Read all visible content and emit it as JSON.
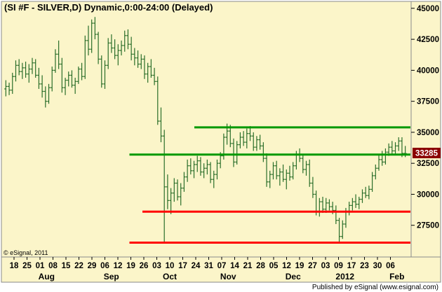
{
  "chart_data": {
    "type": "ohlc",
    "title": "(SI #F - SILVER,D) Dynamic,0:00-24:00 (Delayed)",
    "ylim": [
      25000,
      45500
    ],
    "y_ticks": [
      "45000",
      "42500",
      "40000",
      "37500",
      "35000",
      "32500",
      "30000",
      "27500"
    ],
    "x_ticks": [
      "18",
      "25",
      "01",
      "08",
      "15",
      "22",
      "29",
      "06",
      "12",
      "19",
      "26",
      "03",
      "10",
      "17",
      "24",
      "31",
      "07",
      "14",
      "21",
      "28",
      "05",
      "12",
      "19",
      "27",
      "03",
      "09",
      "17",
      "23",
      "30",
      "06"
    ],
    "months": [
      "Aug",
      "Sep",
      "Oct",
      "Nov",
      "Dec",
      "2012",
      "Feb"
    ],
    "last_price": "33285",
    "grid": false,
    "colors": {
      "background": "#fbf5c9",
      "bars": "#2a6e2a",
      "support": "#ff0000",
      "resistance": "#009900",
      "last_price_box": "#8b0000"
    },
    "horizontal_lines": [
      {
        "kind": "resistance",
        "price": 35400,
        "x_start": "24"
      },
      {
        "kind": "resistance",
        "price": 33200,
        "x_start": "19"
      },
      {
        "kind": "support",
        "price": 28600,
        "x_start": "26"
      },
      {
        "kind": "support",
        "price": 26100,
        "x_start": "19"
      }
    ],
    "ohlc": [
      [
        38500,
        39200,
        37900,
        38700
      ],
      [
        38700,
        39000,
        38000,
        38400
      ],
      [
        38400,
        39800,
        38100,
        39500
      ],
      [
        39500,
        40800,
        39100,
        40400
      ],
      [
        40400,
        40900,
        39600,
        39900
      ],
      [
        39900,
        40600,
        39300,
        40200
      ],
      [
        40200,
        40700,
        39400,
        39700
      ],
      [
        39700,
        40500,
        39000,
        40100
      ],
      [
        40100,
        41000,
        39700,
        40600
      ],
      [
        40600,
        40900,
        39400,
        39600
      ],
      [
        39600,
        40200,
        38500,
        38900
      ],
      [
        38900,
        39600,
        37800,
        38300
      ],
      [
        38300,
        38700,
        37000,
        37500
      ],
      [
        37500,
        38900,
        37300,
        38600
      ],
      [
        38600,
        40300,
        38300,
        40000
      ],
      [
        40000,
        41700,
        39800,
        41300
      ],
      [
        41300,
        42400,
        40100,
        40500
      ],
      [
        40500,
        41000,
        38200,
        38600
      ],
      [
        38600,
        39400,
        38000,
        39200
      ],
      [
        39200,
        39900,
        38700,
        39600
      ],
      [
        39600,
        40000,
        38600,
        38800
      ],
      [
        38800,
        39400,
        38100,
        39100
      ],
      [
        39100,
        40300,
        38900,
        40100
      ],
      [
        40100,
        40600,
        39200,
        39500
      ],
      [
        39500,
        42800,
        39300,
        42400
      ],
      [
        42400,
        43600,
        41200,
        41700
      ],
      [
        41700,
        44100,
        41400,
        43800
      ],
      [
        43800,
        44300,
        42500,
        42900
      ],
      [
        42900,
        43100,
        40500,
        40900
      ],
      [
        40900,
        41200,
        38600,
        38900
      ],
      [
        38900,
        40800,
        38500,
        40400
      ],
      [
        40400,
        42600,
        40100,
        42200
      ],
      [
        42200,
        42900,
        41400,
        41800
      ],
      [
        41800,
        42500,
        40900,
        41200
      ],
      [
        41200,
        42100,
        40400,
        41600
      ],
      [
        41600,
        42400,
        41200,
        42000
      ],
      [
        42000,
        43200,
        41500,
        42800
      ],
      [
        42800,
        43300,
        41700,
        42100
      ],
      [
        42100,
        42700,
        40800,
        41300
      ],
      [
        41300,
        41800,
        40400,
        41000
      ],
      [
        41000,
        41600,
        40200,
        40500
      ],
      [
        40500,
        41300,
        40100,
        40900
      ],
      [
        40900,
        41200,
        39300,
        39700
      ],
      [
        39700,
        40600,
        39000,
        40300
      ],
      [
        40300,
        40900,
        39400,
        39600
      ],
      [
        39600,
        40200,
        38800,
        39100
      ],
      [
        39100,
        39500,
        35600,
        35900
      ],
      [
        35900,
        37000,
        34200,
        34700
      ],
      [
        34700,
        35200,
        26100,
        30600
      ],
      [
        30600,
        31600,
        28800,
        29500
      ],
      [
        29500,
        30500,
        28400,
        30100
      ],
      [
        30100,
        31300,
        29400,
        30900
      ],
      [
        30900,
        31200,
        29500,
        29800
      ],
      [
        29800,
        30900,
        29100,
        30500
      ],
      [
        30500,
        31800,
        30200,
        31400
      ],
      [
        31400,
        32800,
        31000,
        32300
      ],
      [
        32300,
        32900,
        31600,
        31900
      ],
      [
        31900,
        32700,
        31300,
        32400
      ],
      [
        32400,
        33100,
        31800,
        32700
      ],
      [
        32700,
        33000,
        31500,
        31800
      ],
      [
        31800,
        32500,
        31300,
        32100
      ],
      [
        32100,
        32800,
        31600,
        32400
      ],
      [
        32400,
        32600,
        30900,
        31200
      ],
      [
        31200,
        31900,
        30500,
        31600
      ],
      [
        31600,
        32800,
        31200,
        32500
      ],
      [
        32500,
        33400,
        32100,
        33100
      ],
      [
        33100,
        34900,
        32800,
        34600
      ],
      [
        34600,
        35700,
        34000,
        35100
      ],
      [
        35100,
        35600,
        33800,
        34100
      ],
      [
        34100,
        34500,
        32200,
        32600
      ],
      [
        32600,
        34300,
        32400,
        34000
      ],
      [
        34000,
        35000,
        33700,
        34600
      ],
      [
        34600,
        35100,
        33900,
        34200
      ],
      [
        34200,
        35300,
        33700,
        34900
      ],
      [
        34900,
        35500,
        34300,
        34700
      ],
      [
        34700,
        35000,
        33500,
        33800
      ],
      [
        33800,
        34700,
        33500,
        34400
      ],
      [
        34400,
        34800,
        33600,
        33900
      ],
      [
        33900,
        34200,
        32600,
        32900
      ],
      [
        32900,
        33300,
        30600,
        31000
      ],
      [
        31000,
        31900,
        30500,
        31600
      ],
      [
        31600,
        32600,
        31200,
        32300
      ],
      [
        32300,
        32700,
        31200,
        31500
      ],
      [
        31500,
        32100,
        30700,
        31800
      ],
      [
        31800,
        32400,
        31000,
        31200
      ],
      [
        31200,
        32000,
        30400,
        31700
      ],
      [
        31700,
        32300,
        31100,
        31400
      ],
      [
        31400,
        32600,
        31200,
        32300
      ],
      [
        32300,
        33500,
        32000,
        33200
      ],
      [
        33200,
        33700,
        32600,
        32900
      ],
      [
        32900,
        33200,
        31700,
        32000
      ],
      [
        32000,
        32700,
        31500,
        32400
      ],
      [
        32400,
        32800,
        30600,
        30900
      ],
      [
        30900,
        31400,
        29700,
        30000
      ],
      [
        30000,
        30300,
        28300,
        28600
      ],
      [
        28600,
        29700,
        28200,
        29400
      ],
      [
        29400,
        29800,
        28500,
        28800
      ],
      [
        28800,
        29700,
        28500,
        29300
      ],
      [
        29300,
        29600,
        28700,
        29000
      ],
      [
        29000,
        29400,
        28400,
        28700
      ],
      [
        28700,
        29100,
        27600,
        27900
      ],
      [
        27900,
        28100,
        26100,
        26600
      ],
      [
        26600,
        27900,
        26400,
        27600
      ],
      [
        27600,
        28900,
        27300,
        28600
      ],
      [
        28600,
        29400,
        28300,
        29100
      ],
      [
        29100,
        29700,
        28700,
        29400
      ],
      [
        29400,
        30000,
        28900,
        29200
      ],
      [
        29200,
        29800,
        28800,
        29600
      ],
      [
        29600,
        30400,
        29300,
        30100
      ],
      [
        30100,
        30600,
        29700,
        29900
      ],
      [
        29900,
        30700,
        29600,
        30400
      ],
      [
        30400,
        31800,
        30200,
        31500
      ],
      [
        31500,
        32400,
        31200,
        32100
      ],
      [
        32100,
        33200,
        31900,
        32800
      ],
      [
        32800,
        33500,
        32300,
        32600
      ],
      [
        32600,
        33700,
        32400,
        33400
      ],
      [
        33400,
        34100,
        33100,
        33800
      ],
      [
        33800,
        34300,
        33200,
        33500
      ],
      [
        33500,
        34200,
        33200,
        33900
      ],
      [
        33900,
        34600,
        33500,
        34300
      ],
      [
        34300,
        34600,
        33000,
        33300
      ],
      [
        33300,
        33900,
        33000,
        33285
      ]
    ]
  },
  "watermark": "© eSignal, 2011",
  "footer": "Published by eSignal (www.esignal.com)"
}
